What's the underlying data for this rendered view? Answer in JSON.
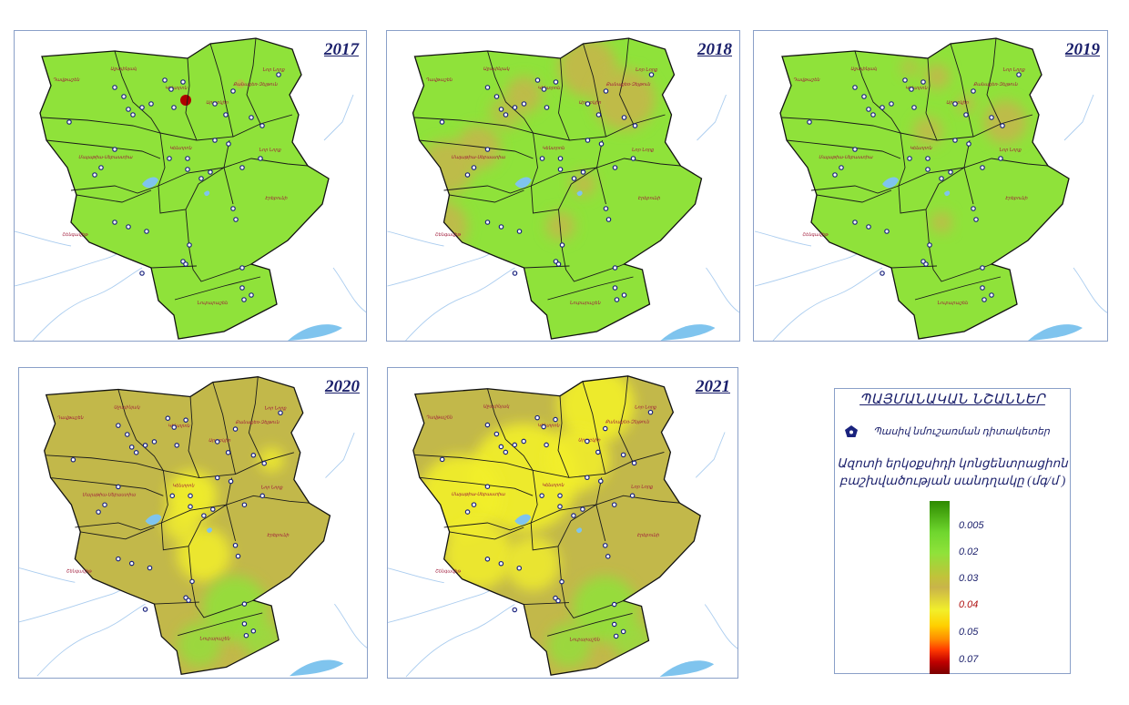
{
  "colors": {
    "low_green": "#8fe23a",
    "olive": "#c2b84a",
    "yellow": "#f2ef2a",
    "lake": "#7fc4ee",
    "river": "#86b7e8",
    "station": "#1a237e",
    "title_blue": "#1a1f6b",
    "hotspot_red": "#b00000"
  },
  "maps": [
    {
      "year": "2017",
      "base": "green",
      "hotspots": [
        "small-red"
      ]
    },
    {
      "year": "2018",
      "base": "green",
      "hotspots": [
        "olive-patches"
      ]
    },
    {
      "year": "2019",
      "base": "green",
      "hotspots": [
        "olive-patches-small"
      ]
    },
    {
      "year": "2020",
      "base": "olive",
      "hotspots": [
        "yellow-center",
        "green-south"
      ]
    },
    {
      "year": "2021",
      "base": "olive",
      "hotspots": [
        "yellow-north-west",
        "green-south"
      ]
    }
  ],
  "legend": {
    "title": "ՊԱՅՄԱՆԱԿԱՆ ՆՇԱՆՆԵՐ",
    "station_label": "Պասիվ նմուշառման դիտակետեր",
    "station_icon": "pentagon-station-icon",
    "heading_line1": "Ազոտի երկօքսիդի կոնցենտրացիոն",
    "heading_line2": "բաշխվածության սանդղակը (մգ/մ  )",
    "ticks": [
      "0.005",
      "0.02",
      "0.03",
      "0.04",
      "0.05",
      "0.07"
    ]
  }
}
